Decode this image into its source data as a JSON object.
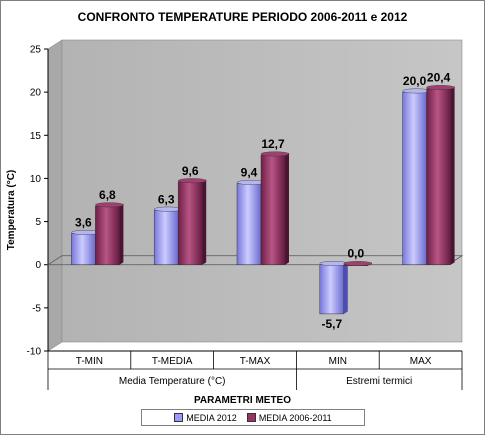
{
  "chart_data": {
    "type": "bar",
    "title": "CONFRONTO TEMPERATURE PERIODO 2006-2011 e 2012",
    "xlabel": "PARAMETRI METEO",
    "ylabel": "Temperatura (°C)",
    "ylim": [
      -10,
      25
    ],
    "yticks": [
      -10,
      -5,
      0,
      5,
      10,
      15,
      20,
      25
    ],
    "grid": false,
    "legend_position": "bottom",
    "categories": [
      "T-MIN",
      "T-MEDIA",
      "T-MAX",
      "MIN",
      "MAX"
    ],
    "groups": [
      {
        "label": "Media Temperature (°C)",
        "span": 3
      },
      {
        "label": "Estremi termici",
        "span": 2
      }
    ],
    "series": [
      {
        "name": "MEDIA 2012",
        "color": "#9999ff",
        "values": [
          3.6,
          6.3,
          9.4,
          -5.7,
          20.0
        ],
        "labels": [
          "3,6",
          "6,3",
          "9,4",
          "-5,7",
          "20,0"
        ]
      },
      {
        "name": "MEDIA 2006-2011",
        "color": "#993366",
        "values": [
          6.8,
          9.6,
          12.7,
          0.0,
          20.4
        ],
        "labels": [
          "6,8",
          "9,6",
          "12,7",
          "0,0",
          "20,4"
        ]
      }
    ]
  }
}
